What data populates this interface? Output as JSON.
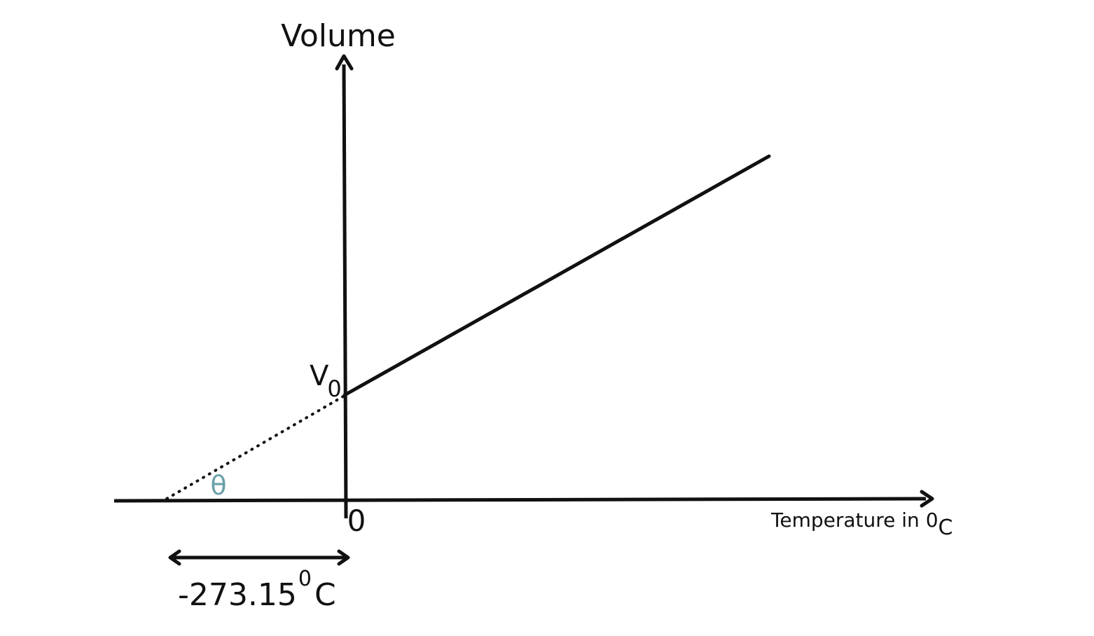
{
  "diagram": {
    "y_axis_label": "Volume",
    "x_axis_label": {
      "text": "Temperature in 0",
      "subscript": "C"
    },
    "intercept_label": {
      "base": "V",
      "subscript": "0"
    },
    "origin_label": "0",
    "angle_label": "θ",
    "extrapolation_label": {
      "value": "-273.15",
      "superscript": "0",
      "unit": "C"
    },
    "colors": {
      "ink": "#111111",
      "angle": "#6aa0a8",
      "background": "#ffffff"
    }
  }
}
